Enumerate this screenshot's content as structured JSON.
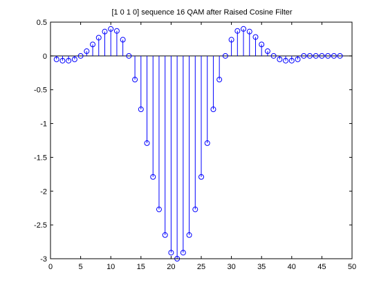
{
  "chart_data": {
    "type": "stem",
    "title": "[1 0 1 0] sequence 16 QAM after Raised Cosine Filter",
    "xlabel": "",
    "ylabel": "",
    "xlim": [
      0,
      50
    ],
    "ylim": [
      -3,
      0.5
    ],
    "xticks": [
      "0",
      "5",
      "10",
      "15",
      "20",
      "25",
      "30",
      "35",
      "40",
      "45",
      "50"
    ],
    "yticks": [
      "0.5",
      "0",
      "-0.5",
      "-1",
      "-1.5",
      "-2",
      "-2.5",
      "-3"
    ],
    "grid": false,
    "colors": {
      "stem": "#0000ff",
      "baseline": "#000000",
      "axes": "#000000"
    },
    "series": [
      {
        "x": [
          1,
          2,
          3,
          4,
          5,
          6,
          7,
          8,
          9,
          10,
          11,
          12,
          13,
          14,
          15,
          16,
          17,
          18,
          19,
          20,
          21,
          22,
          23,
          24,
          25,
          26,
          27,
          28,
          29,
          30,
          31,
          32,
          33,
          34,
          35,
          36,
          37,
          38,
          39,
          40,
          41,
          42,
          43,
          44,
          45,
          46,
          47,
          48
        ],
        "y": [
          -0.05,
          -0.07,
          -0.07,
          -0.05,
          0.0,
          0.07,
          0.17,
          0.27,
          0.36,
          0.4,
          0.37,
          0.24,
          0.0,
          -0.35,
          -0.79,
          -1.29,
          -1.79,
          -2.27,
          -2.65,
          -2.91,
          -3.0,
          -2.91,
          -2.65,
          -2.27,
          -1.79,
          -1.29,
          -0.79,
          -0.35,
          0.0,
          0.24,
          0.37,
          0.4,
          0.36,
          0.28,
          0.17,
          0.07,
          0.0,
          -0.05,
          -0.07,
          -0.07,
          -0.05,
          0.0,
          0.0,
          0.0,
          0.0,
          0.0,
          0.0,
          0.0
        ]
      }
    ]
  }
}
